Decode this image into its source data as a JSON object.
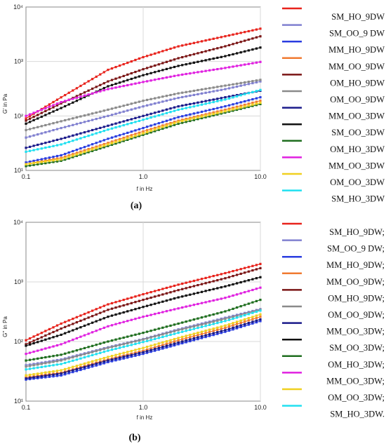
{
  "chart_data": [
    {
      "type": "scatter",
      "caption": "(a)",
      "xlabel": "f in Hz",
      "ylabel": "G' in Pa",
      "xscale": "log",
      "yscale": "log",
      "xlim": [
        0.1,
        10
      ],
      "ylim": [
        10,
        10000
      ],
      "xticks": [
        "0.1",
        "1.0",
        "10.0"
      ],
      "yticks": [
        "10¹",
        "10²",
        "10³",
        "10⁴"
      ],
      "legend_position": "right",
      "series": [
        {
          "name": "SM_HO_9DW",
          "color": "#e8231c",
          "x": [
            0.1,
            0.2,
            0.5,
            1,
            2,
            5,
            10
          ],
          "y": [
            90,
            220,
            700,
            1200,
            1900,
            2900,
            4000
          ]
        },
        {
          "name": "SM_OO_9 DW",
          "color": "#8080d0",
          "x": [
            0.1,
            0.2,
            0.5,
            1,
            2,
            5,
            10
          ],
          "y": [
            40,
            60,
            100,
            150,
            215,
            310,
            430
          ]
        },
        {
          "name": "MM_HO_9DW",
          "color": "#2a3de0",
          "x": [
            0.1,
            0.2,
            0.5,
            1,
            2,
            5,
            10
          ],
          "y": [
            14,
            19,
            38,
            60,
            95,
            150,
            220
          ]
        },
        {
          "name": "MM_OO_9DW",
          "color": "#f07a30",
          "x": [
            0.1,
            0.2,
            0.5,
            1,
            2,
            5,
            10
          ],
          "y": [
            13,
            17,
            32,
            52,
            82,
            130,
            190
          ]
        },
        {
          "name": "OM_HO_9DW",
          "color": "#7a1414",
          "x": [
            0.1,
            0.2,
            0.5,
            1,
            2,
            5,
            10
          ],
          "y": [
            82,
            170,
            430,
            720,
            1150,
            1900,
            2900
          ]
        },
        {
          "name": "OM_OO_9DW",
          "color": "#8a8a8a",
          "x": [
            0.1,
            0.2,
            0.5,
            1,
            2,
            5,
            10
          ],
          "y": [
            55,
            80,
            130,
            190,
            260,
            360,
            460
          ]
        },
        {
          "name": "MM_OO_3DW",
          "color": "#1a1a8a",
          "x": [
            0.1,
            0.2,
            0.5,
            1,
            2,
            5,
            10
          ],
          "y": [
            26,
            38,
            66,
            100,
            150,
            220,
            290
          ]
        },
        {
          "name": "SM_OO_3DW",
          "color": "#111111",
          "x": [
            0.1,
            0.2,
            0.5,
            1,
            2,
            5,
            10
          ],
          "y": [
            72,
            140,
            350,
            560,
            830,
            1250,
            1800
          ]
        },
        {
          "name": "OM_HO_3DW",
          "color": "#1f6e1f",
          "x": [
            0.1,
            0.2,
            0.5,
            1,
            2,
            5,
            10
          ],
          "y": [
            12,
            15,
            28,
            45,
            72,
            115,
            165
          ]
        },
        {
          "name": "MM_OO_3DW",
          "color": "#e020e0",
          "x": [
            0.1,
            0.2,
            0.5,
            1,
            2,
            5,
            10
          ],
          "y": [
            100,
            180,
            310,
            420,
            560,
            760,
            980
          ]
        },
        {
          "name": "OM_OO_3DW",
          "color": "#f0d020",
          "x": [
            0.1,
            0.2,
            0.5,
            1,
            2,
            5,
            10
          ],
          "y": [
            13,
            16,
            30,
            48,
            78,
            122,
            175
          ]
        },
        {
          "name": "SM_HO_3DW",
          "color": "#20e0f0",
          "x": [
            0.1,
            0.2,
            0.5,
            1,
            2,
            5,
            10
          ],
          "y": [
            22,
            30,
            56,
            85,
            130,
            200,
            300
          ]
        }
      ]
    },
    {
      "type": "scatter",
      "caption": "(b)",
      "xlabel": "f in Hz",
      "ylabel": "G'' in Pa",
      "xscale": "log",
      "yscale": "log",
      "xlim": [
        0.1,
        10
      ],
      "ylim": [
        10,
        10000
      ],
      "xticks": [
        "0.1",
        "1.0",
        "10.0"
      ],
      "yticks": [
        "10¹",
        "10²",
        "10³",
        "10⁴"
      ],
      "legend_position": "right",
      "series": [
        {
          "name": "SM_HO_9DW;",
          "color": "#e8231c",
          "x": [
            0.1,
            0.2,
            0.5,
            1,
            2,
            5,
            10
          ],
          "y": [
            105,
            200,
            420,
            620,
            900,
            1400,
            2000
          ]
        },
        {
          "name": "SM_OO_9 DW;",
          "color": "#8080d0",
          "x": [
            0.1,
            0.2,
            0.5,
            1,
            2,
            5,
            10
          ],
          "y": [
            40,
            50,
            80,
            110,
            160,
            250,
            350
          ]
        },
        {
          "name": "MM_HO_9DW;",
          "color": "#2a3de0",
          "x": [
            0.1,
            0.2,
            0.5,
            1,
            2,
            5,
            10
          ],
          "y": [
            23,
            27,
            45,
            62,
            90,
            145,
            220
          ]
        },
        {
          "name": "MM_OO_9DW;",
          "color": "#f07a30",
          "x": [
            0.1,
            0.2,
            0.5,
            1,
            2,
            5,
            10
          ],
          "y": [
            25,
            30,
            50,
            70,
            105,
            170,
            260
          ]
        },
        {
          "name": "OM_HO_9DW;",
          "color": "#7a1414",
          "x": [
            0.1,
            0.2,
            0.5,
            1,
            2,
            5,
            10
          ],
          "y": [
            90,
            165,
            340,
            500,
            730,
            1150,
            1700
          ]
        },
        {
          "name": "OM_OO_9DW;",
          "color": "#8a8a8a",
          "x": [
            0.1,
            0.2,
            0.5,
            1,
            2,
            5,
            10
          ],
          "y": [
            38,
            48,
            78,
            108,
            155,
            240,
            340
          ]
        },
        {
          "name": "MM_OO_3DW;",
          "color": "#1a1a8a",
          "x": [
            0.1,
            0.2,
            0.5,
            1,
            2,
            5,
            10
          ],
          "y": [
            24,
            29,
            48,
            66,
            96,
            155,
            235
          ]
        },
        {
          "name": "SM_OO_3DW;",
          "color": "#111111",
          "x": [
            0.1,
            0.2,
            0.5,
            1,
            2,
            5,
            10
          ],
          "y": [
            85,
            130,
            260,
            380,
            550,
            840,
            1200
          ]
        },
        {
          "name": "OM_HO_3DW;",
          "color": "#1f6e1f",
          "x": [
            0.1,
            0.2,
            0.5,
            1,
            2,
            5,
            10
          ],
          "y": [
            48,
            60,
            100,
            140,
            200,
            320,
            500
          ]
        },
        {
          "name": "MM_OO_3DW;",
          "color": "#e020e0",
          "x": [
            0.1,
            0.2,
            0.5,
            1,
            2,
            5,
            10
          ],
          "y": [
            62,
            90,
            180,
            260,
            360,
            540,
            800
          ]
        },
        {
          "name": "OM_OO_3DW;",
          "color": "#f0d020",
          "x": [
            0.1,
            0.2,
            0.5,
            1,
            2,
            5,
            10
          ],
          "y": [
            27,
            33,
            55,
            78,
            115,
            185,
            285
          ]
        },
        {
          "name": "SM_HO_3DW.",
          "color": "#20e0f0",
          "x": [
            0.1,
            0.2,
            0.5,
            1,
            2,
            5,
            10
          ],
          "y": [
            34,
            42,
            70,
            98,
            140,
            220,
            330
          ]
        }
      ]
    }
  ]
}
